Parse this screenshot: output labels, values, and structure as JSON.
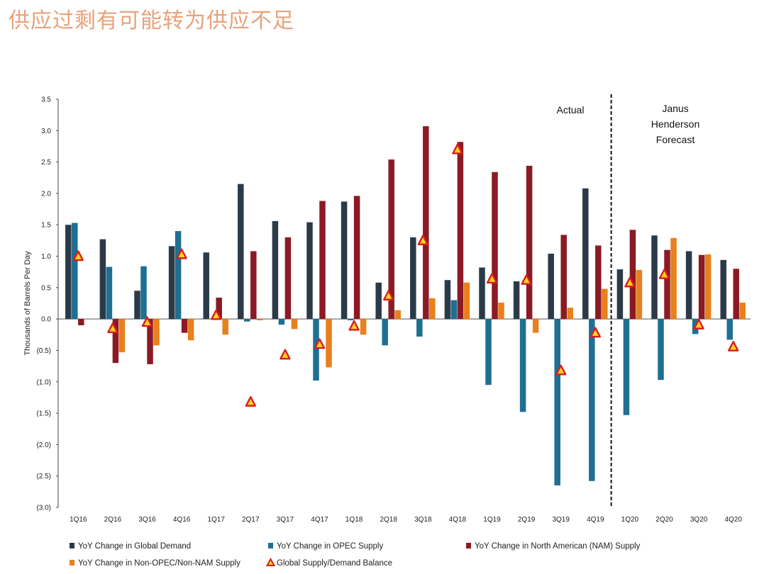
{
  "page": {
    "title": "供应过剩有可能转为供应不足"
  },
  "chart_data": {
    "type": "bar",
    "title": "",
    "xlabel": "",
    "ylabel": "Thousands of Barrels Per Day",
    "ylim": [
      -3.0,
      3.5
    ],
    "yticks": [
      3.5,
      3.0,
      2.5,
      2.0,
      1.5,
      1.0,
      0.5,
      0.0,
      -0.5,
      -1.0,
      -1.5,
      -2.0,
      -2.5,
      -3.0
    ],
    "ytick_labels": [
      "3.5",
      "3.0",
      "2.5",
      "2.0",
      "1.5",
      "1.0",
      "0.5",
      "0.0",
      "(0.5)",
      "(1.0)",
      "(1.5)",
      "(2.0)",
      "(2.5)",
      "(3.0)"
    ],
    "grid": false,
    "legend_position": "bottom",
    "categories": [
      "1Q16",
      "2Q16",
      "3Q16",
      "4Q16",
      "1Q17",
      "2Q17",
      "3Q17",
      "4Q17",
      "1Q18",
      "2Q18",
      "3Q18",
      "4Q18",
      "1Q19",
      "2Q19",
      "3Q19",
      "4Q19",
      "1Q20",
      "2Q20",
      "3Q20",
      "4Q20"
    ],
    "series": [
      {
        "name": "YoY Change in Global Demand",
        "kind": "bar",
        "color": "#2b3a49",
        "values": [
          1.5,
          1.27,
          0.45,
          1.16,
          1.06,
          2.15,
          1.56,
          1.54,
          1.87,
          0.58,
          1.3,
          0.62,
          0.82,
          0.6,
          1.04,
          2.08,
          0.79,
          1.33,
          1.08,
          0.94
        ]
      },
      {
        "name": "YoY Change in OPEC Supply",
        "kind": "bar",
        "color": "#1f6f93",
        "values": [
          1.53,
          0.83,
          0.84,
          1.4,
          0.0,
          -0.04,
          -0.09,
          -0.98,
          -0.02,
          -0.42,
          -0.28,
          0.3,
          -1.05,
          -1.48,
          -2.65,
          -2.58,
          -1.53,
          -0.97,
          -0.24,
          -0.33
        ]
      },
      {
        "name": "YoY Change in North American (NAM) Supply",
        "kind": "bar",
        "color": "#8b1a24",
        "values": [
          -0.1,
          -0.7,
          -0.72,
          -0.22,
          0.34,
          1.08,
          1.3,
          1.88,
          1.96,
          2.54,
          3.07,
          2.82,
          2.34,
          2.44,
          1.34,
          1.17,
          1.42,
          1.1,
          1.02,
          0.8
        ]
      },
      {
        "name": "YoY Change in  Non-OPEC/Non-NAM Supply",
        "kind": "bar",
        "color": "#e8801d",
        "values": [
          0.0,
          -0.53,
          -0.42,
          -0.34,
          -0.25,
          -0.02,
          -0.16,
          -0.77,
          -0.25,
          0.14,
          0.33,
          0.58,
          0.26,
          -0.22,
          0.18,
          0.48,
          0.78,
          1.29,
          1.03,
          0.26
        ]
      },
      {
        "name": "Global Supply/Demand Balance",
        "kind": "marker",
        "color": "#d81e1e",
        "values": [
          1.0,
          -0.15,
          -0.05,
          1.03,
          0.06,
          -1.32,
          -0.57,
          -0.4,
          -0.11,
          0.37,
          1.25,
          2.7,
          0.64,
          0.62,
          -0.82,
          -0.22,
          0.58,
          0.71,
          -0.09,
          -0.44
        ]
      }
    ],
    "annotations": {
      "actual": "Actual",
      "forecast": [
        "Janus",
        "Henderson",
        "Forecast"
      ]
    },
    "divider_after_category": "4Q19"
  }
}
